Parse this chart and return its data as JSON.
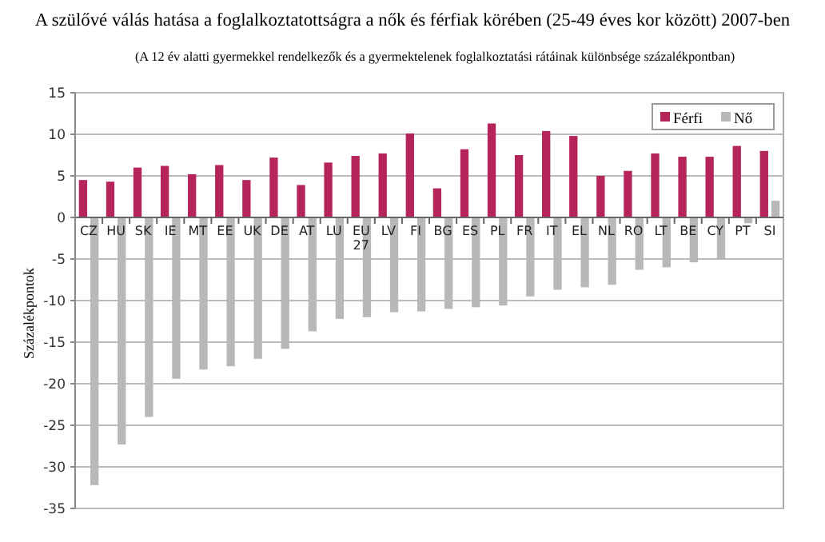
{
  "chart_data": {
    "type": "bar",
    "title": "A szülővé válás hatása a foglalkoztatottságra a nők és férfiak körében (25-49 éves kor között) 2007-ben",
    "subtitle": "(A 12 év alatti gyermekkel rendelkezők és a gyermektelenek foglalkoztatási rátáinak különbsége százalékpontban)",
    "ylabel": "Százalékpontok",
    "categories": [
      "CZ",
      "HU",
      "SK",
      "IE",
      "MT",
      "EE",
      "UK",
      "DE",
      "AT",
      "LU",
      "EU 27",
      "LV",
      "FI",
      "BG",
      "ES",
      "PL",
      "FR",
      "IT",
      "EL",
      "NL",
      "RO",
      "LT",
      "BE",
      "CY",
      "PT",
      "SI"
    ],
    "series": [
      {
        "name": "Férfi",
        "color": "#b5245a",
        "values": [
          4.5,
          4.3,
          6.0,
          6.2,
          5.2,
          6.3,
          4.5,
          7.2,
          3.9,
          6.6,
          7.4,
          7.7,
          10.1,
          3.5,
          8.2,
          11.3,
          7.5,
          10.4,
          9.8,
          5.0,
          5.6,
          7.7,
          7.3,
          7.3,
          8.6,
          8.0
        ]
      },
      {
        "name": "Nő",
        "color": "#b8b8b8",
        "values": [
          -32.2,
          -27.3,
          -24.0,
          -19.4,
          -18.3,
          -17.9,
          -17.0,
          -15.8,
          -13.7,
          -12.2,
          -12.0,
          -11.4,
          -11.3,
          -11.0,
          -10.8,
          -10.6,
          -9.5,
          -8.7,
          -8.4,
          -8.1,
          -6.3,
          -6.0,
          -5.4,
          -5.1,
          -0.7,
          2.0
        ]
      }
    ],
    "ylim": [
      -35,
      15
    ],
    "yticks": [
      -35,
      -30,
      -25,
      -20,
      -15,
      -10,
      -5,
      0,
      5,
      10,
      15
    ],
    "grid": "y",
    "legend": "top right"
  }
}
